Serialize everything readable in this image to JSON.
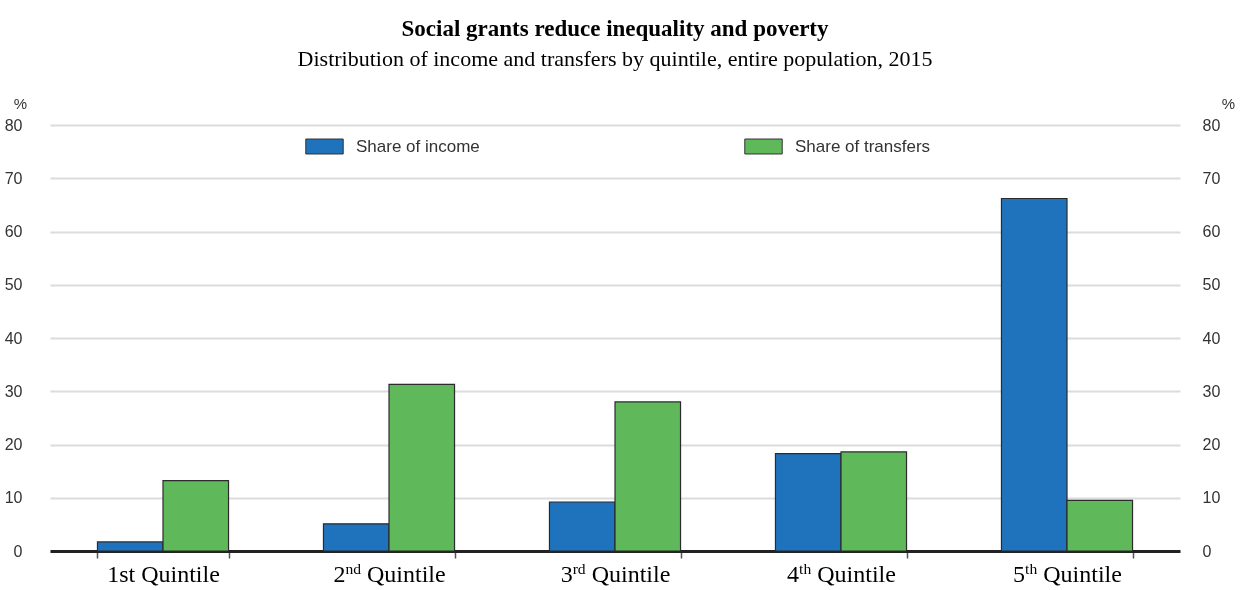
{
  "chart_data": {
    "type": "bar",
    "title": "Social grants reduce inequality and poverty",
    "subtitle": "Distribution of income and transfers by quintile, entire population, 2015",
    "categories": [
      "1st Quintile",
      "2$^{nd}$ Quintile",
      "3$^{rd}$ Quintile",
      "4$^{th}$ Quintile",
      "5$^{th}$ Quintile"
    ],
    "series": [
      {
        "name": "Share of income",
        "color": "#1f72bc",
        "values": [
          1.7,
          5.1,
          9.2,
          18.3,
          66.2
        ]
      },
      {
        "name": "Share of transfers",
        "color": "#5fb85a",
        "values": [
          13.2,
          31.3,
          28.0,
          18.6,
          9.5
        ],
        "axis": "y2"
      }
    ],
    "ylabel": "%",
    "y2label": "%",
    "ylim": [
      0,
      80
    ],
    "yticks": [
      0,
      10,
      20,
      30,
      40,
      50,
      60,
      70,
      80
    ],
    "y2lim": [
      0,
      80
    ],
    "y2ticks": [
      0,
      10,
      20,
      30,
      40,
      50,
      60,
      70,
      80
    ],
    "grid": "y",
    "legend": "top"
  }
}
